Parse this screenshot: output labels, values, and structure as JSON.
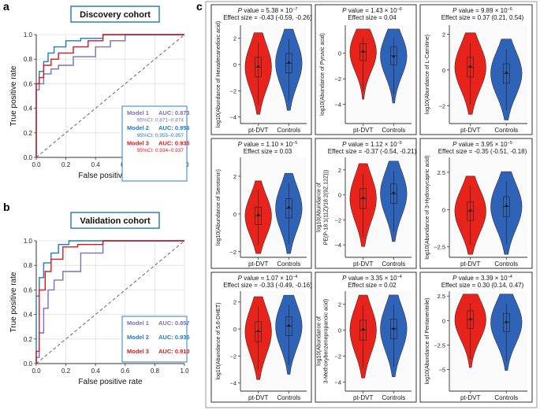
{
  "panel_labels": {
    "a": "a",
    "b": "b",
    "c": "c"
  },
  "colors": {
    "model1": "#7b6fb5",
    "model2": "#1f78c8",
    "model3": "#d7191c",
    "pt_dvt": "#e8231b",
    "controls": "#2e63b8",
    "title_box": "#2e7fc2",
    "panel_grey": "#ebebeb"
  },
  "chart_data": [
    {
      "type": "line",
      "title": "Discovery cohort",
      "xlabel": "False positive rate",
      "ylabel": "True positive rate",
      "xlim": [
        0,
        1
      ],
      "ylim": [
        0,
        1
      ],
      "xticks": [
        "0.0",
        "0.2",
        "0.4",
        "0.6",
        "0.8",
        "1.0"
      ],
      "yticks": [
        "0.0",
        "0.2",
        "0.4",
        "0.6",
        "0.8",
        "1.0"
      ],
      "grid": true,
      "legend_position": "bottom-right",
      "series": [
        {
          "name": "Model 1",
          "auc": "AUC: 0.873",
          "ci": "95%CI: 0.871–0.874",
          "x": [
            0,
            0,
            0.02,
            0.02,
            0.05,
            0.05,
            0.1,
            0.1,
            0.15,
            0.15,
            0.25,
            0.25,
            0.4,
            0.4,
            0.5,
            0.5,
            0.6,
            0.6,
            1
          ],
          "y": [
            0,
            0.55,
            0.55,
            0.6,
            0.6,
            0.68,
            0.68,
            0.72,
            0.72,
            0.75,
            0.75,
            0.82,
            0.82,
            0.9,
            0.9,
            0.95,
            0.95,
            1,
            1
          ]
        },
        {
          "name": "Model 2",
          "auc": "AUC: 0.956",
          "ci": "95%CI: 0.955–0.957",
          "x": [
            0,
            0,
            0.02,
            0.02,
            0.05,
            0.05,
            0.08,
            0.08,
            0.12,
            0.12,
            0.2,
            0.2,
            0.3,
            0.3,
            0.45,
            0.45,
            1
          ],
          "y": [
            0,
            0.6,
            0.6,
            0.7,
            0.7,
            0.78,
            0.78,
            0.85,
            0.85,
            0.9,
            0.9,
            0.95,
            0.95,
            0.97,
            0.97,
            1,
            1
          ]
        },
        {
          "name": "Model 3",
          "auc": "AUC: 0.935",
          "ci": "95%CI: 0.934–0.937",
          "x": [
            0,
            0,
            0.02,
            0.02,
            0.05,
            0.05,
            0.1,
            0.1,
            0.15,
            0.15,
            0.25,
            0.25,
            0.35,
            0.35,
            0.45,
            0.45,
            1
          ],
          "y": [
            0,
            0.6,
            0.6,
            0.65,
            0.65,
            0.75,
            0.75,
            0.8,
            0.8,
            0.85,
            0.85,
            0.9,
            0.9,
            0.95,
            0.95,
            1,
            1
          ]
        }
      ]
    },
    {
      "type": "line",
      "title": "Validation cohort",
      "xlabel": "False positive rate",
      "ylabel": "True positive rate",
      "xlim": [
        0,
        1
      ],
      "ylim": [
        0,
        1
      ],
      "xticks": [
        "0.0",
        "0.2",
        "0.4",
        "0.6",
        "0.8",
        "1.0"
      ],
      "yticks": [
        "0.0",
        "0.2",
        "0.4",
        "0.6",
        "0.8",
        "1.0"
      ],
      "grid": true,
      "legend_position": "bottom-right",
      "series": [
        {
          "name": "Model 1",
          "auc": "AUC: 0.857",
          "x": [
            0,
            0,
            0.02,
            0.02,
            0.05,
            0.05,
            0.08,
            0.08,
            0.12,
            0.12,
            0.18,
            0.18,
            0.3,
            0.3,
            0.45,
            0.45,
            1
          ],
          "y": [
            0,
            0.05,
            0.05,
            0.25,
            0.25,
            0.45,
            0.45,
            0.6,
            0.6,
            0.68,
            0.68,
            0.75,
            0.75,
            0.9,
            0.9,
            1,
            1
          ]
        },
        {
          "name": "Model 2",
          "auc": "AUC: 0.935",
          "x": [
            0,
            0,
            0.02,
            0.02,
            0.05,
            0.05,
            0.1,
            0.1,
            0.15,
            0.15,
            0.22,
            0.22,
            0.4,
            0.4,
            1
          ],
          "y": [
            0,
            0.55,
            0.55,
            0.7,
            0.7,
            0.82,
            0.82,
            0.9,
            0.9,
            0.97,
            0.97,
            1,
            1,
            1,
            1
          ]
        },
        {
          "name": "Model 3",
          "auc": "AUC: 0.910",
          "x": [
            0,
            0,
            0.02,
            0.02,
            0.06,
            0.06,
            0.1,
            0.1,
            0.18,
            0.18,
            0.28,
            0.28,
            0.45,
            0.45,
            1
          ],
          "y": [
            0,
            0.1,
            0.1,
            0.6,
            0.6,
            0.75,
            0.75,
            0.85,
            0.85,
            0.95,
            0.95,
            0.97,
            0.97,
            1,
            1
          ]
        }
      ]
    },
    {
      "type": "violin",
      "categories": [
        "pt-DVT",
        "Controls"
      ],
      "panels": [
        {
          "pvalue": "5.38 × 10",
          "pexp": "−7",
          "effect": "Effect size = -0.43 (-0.59, -0.26)",
          "ylabel": [
            "log10(Abundance of Hexadecanedioic acid)"
          ],
          "ylim": [
            -4.5,
            3
          ],
          "yticks": [
            -4,
            -2,
            0,
            2
          ],
          "medians": [
            -0.2,
            0.1
          ],
          "means": [
            -0.15,
            0.15
          ]
        },
        {
          "pvalue": "1.43 × 10",
          "pexp": "−6",
          "effect": "Effect size = 0.04",
          "ylabel": [
            "log10(Abundance of Pyruvic acid)"
          ],
          "ylim": [
            -5.5,
            2.2
          ],
          "yticks": [
            -4,
            -2,
            0
          ],
          "medians": [
            0.1,
            -0.2
          ],
          "means": [
            0.15,
            -0.25
          ]
        },
        {
          "pvalue": "9.89 × 10",
          "pexp": "−6",
          "effect": "Effect size = 0.37 (0.21, 0.54)",
          "ylabel": [
            "log10(Abundance of L-Carnitine)"
          ],
          "ylim": [
            -3,
            2.5
          ],
          "yticks": [
            -2,
            0,
            2
          ],
          "medians": [
            0.15,
            -0.2
          ],
          "means": [
            0.2,
            -0.15
          ]
        },
        {
          "pvalue": "1.10 × 10",
          "pexp": "−5",
          "effect": "Effect size = 0.03",
          "ylabel": [
            "log10(Abundance of Serotonin)"
          ],
          "ylim": [
            -2.3,
            3
          ],
          "yticks": [
            -2,
            0,
            2
          ],
          "medians": [
            -0.1,
            0.3
          ],
          "means": [
            -0.05,
            0.35
          ]
        },
        {
          "pvalue": "1.12 × 10",
          "pexp": "−5",
          "effect": "Effect size = -0.37 (-0.54, -0.21)",
          "ylabel": [
            "log10(Abundance of",
            "PE(P-18:1(11Z)/18:2(9Z,12Z)))"
          ],
          "ylim": [
            -5,
            3
          ],
          "yticks": [
            -4,
            -2,
            0,
            2
          ],
          "medians": [
            -0.3,
            0.1
          ],
          "means": [
            -0.25,
            0.15
          ]
        },
        {
          "pvalue": "3.95 × 10",
          "pexp": "−5",
          "effect": "Effect size = -0.35 (-0.51, -0.18)",
          "ylabel": [
            "log10(Abundance of 3-Hydroxycapric acid)"
          ],
          "ylim": [
            -3.2,
            3.5
          ],
          "yticks": [
            -2.5,
            0,
            2.5
          ],
          "medians": [
            -0.1,
            0.2
          ],
          "means": [
            -0.05,
            0.25
          ]
        },
        {
          "pvalue": "1.07 × 10",
          "pexp": "−4",
          "effect": "Effect size = -0.33 (-0.49, -0.16)",
          "ylabel": [
            "log10(Abundance of 5,6-DHET)"
          ],
          "ylim": [
            -4.6,
            2.8
          ],
          "yticks": [
            -4,
            -2,
            0,
            2
          ],
          "medians": [
            -0.2,
            0.2
          ],
          "means": [
            -0.15,
            0.25
          ]
        },
        {
          "pvalue": "3.35 × 10",
          "pexp": "−4",
          "effect": "Effect size = 0.02",
          "ylabel": [
            "log10(Abundance of",
            "3-Methoxybenzenepropanoic acid)"
          ],
          "ylim": [
            -4.7,
            3
          ],
          "yticks": [
            -4,
            -2,
            0,
            2
          ],
          "medians": [
            0,
            0.1
          ],
          "means": [
            0.05,
            0.1
          ]
        },
        {
          "pvalue": "3.39 × 10",
          "pexp": "−4",
          "effect": "Effect size = 0.30 (0.14, 0.47)",
          "ylabel": [
            "log10(Abundance of Pentanenitrile)"
          ],
          "ylim": [
            -7.2,
            3
          ],
          "yticks": [
            -5,
            -2.5,
            0,
            2.5
          ],
          "medians": [
            0.1,
            -0.2
          ],
          "means": [
            0.15,
            -0.15
          ]
        }
      ]
    }
  ]
}
